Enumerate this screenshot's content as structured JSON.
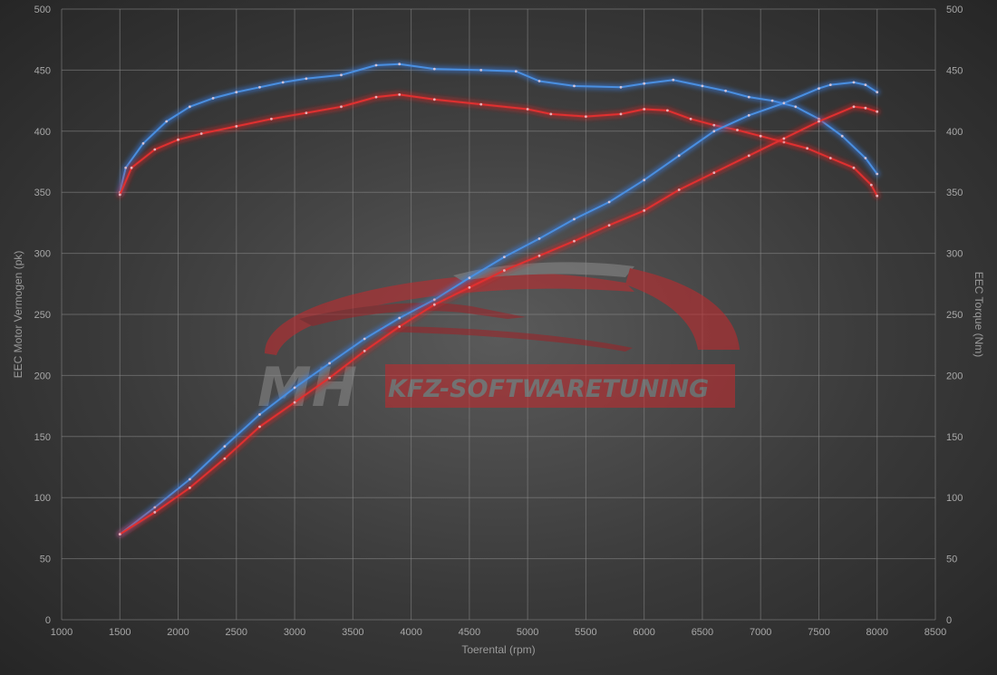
{
  "chart_data": {
    "type": "line",
    "xlabel": "Toerental (rpm)",
    "ylabel_left": "EEC Motor Vermogen (pk)",
    "ylabel_right": "EEC Torque (Nm)",
    "xlim": [
      1000,
      8500
    ],
    "ylim_left": [
      0,
      500
    ],
    "ylim_right": [
      0,
      500
    ],
    "x_ticks": [
      1000,
      1500,
      2000,
      2500,
      3000,
      3500,
      4000,
      4500,
      5000,
      5500,
      6000,
      6500,
      7000,
      7500,
      8000,
      8500
    ],
    "y_ticks": [
      0,
      50,
      100,
      150,
      200,
      250,
      300,
      350,
      400,
      450,
      500
    ],
    "grid": true,
    "series": [
      {
        "color": "#4a8fe0",
        "glow": "#3a7fe8",
        "axis": "right",
        "points": [
          [
            1500,
            350
          ],
          [
            1550,
            370
          ],
          [
            1700,
            390
          ],
          [
            1900,
            408
          ],
          [
            2100,
            420
          ],
          [
            2300,
            427
          ],
          [
            2500,
            432
          ],
          [
            2700,
            436
          ],
          [
            2900,
            440
          ],
          [
            3100,
            443
          ],
          [
            3400,
            446
          ],
          [
            3700,
            454
          ],
          [
            3900,
            455
          ],
          [
            4200,
            451
          ],
          [
            4600,
            450
          ],
          [
            4900,
            449
          ],
          [
            5100,
            441
          ],
          [
            5400,
            437
          ],
          [
            5800,
            436
          ],
          [
            6000,
            439
          ],
          [
            6250,
            442
          ],
          [
            6500,
            437
          ],
          [
            6700,
            433
          ],
          [
            6900,
            428
          ],
          [
            7100,
            425
          ],
          [
            7300,
            420
          ],
          [
            7500,
            410
          ],
          [
            7700,
            396
          ],
          [
            7900,
            378
          ],
          [
            8000,
            365
          ]
        ]
      },
      {
        "color": "#e03030",
        "glow": "#e02020",
        "axis": "right",
        "points": [
          [
            1500,
            348
          ],
          [
            1600,
            370
          ],
          [
            1800,
            385
          ],
          [
            2000,
            393
          ],
          [
            2200,
            398
          ],
          [
            2500,
            404
          ],
          [
            2800,
            410
          ],
          [
            3100,
            415
          ],
          [
            3400,
            420
          ],
          [
            3700,
            428
          ],
          [
            3900,
            430
          ],
          [
            4200,
            426
          ],
          [
            4600,
            422
          ],
          [
            5000,
            418
          ],
          [
            5200,
            414
          ],
          [
            5500,
            412
          ],
          [
            5800,
            414
          ],
          [
            6000,
            418
          ],
          [
            6200,
            417
          ],
          [
            6400,
            410
          ],
          [
            6600,
            405
          ],
          [
            6800,
            401
          ],
          [
            7000,
            396
          ],
          [
            7200,
            391
          ],
          [
            7400,
            386
          ],
          [
            7600,
            378
          ],
          [
            7800,
            370
          ],
          [
            7950,
            356
          ],
          [
            8000,
            347
          ]
        ]
      },
      {
        "color": "#4a8fe0",
        "glow": "#3a7fe8",
        "axis": "left",
        "points": [
          [
            1500,
            70
          ],
          [
            1800,
            92
          ],
          [
            2100,
            115
          ],
          [
            2400,
            142
          ],
          [
            2700,
            168
          ],
          [
            3000,
            190
          ],
          [
            3300,
            210
          ],
          [
            3600,
            230
          ],
          [
            3900,
            247
          ],
          [
            4200,
            262
          ],
          [
            4500,
            280
          ],
          [
            4800,
            297
          ],
          [
            5100,
            312
          ],
          [
            5400,
            328
          ],
          [
            5700,
            342
          ],
          [
            6000,
            360
          ],
          [
            6300,
            380
          ],
          [
            6600,
            400
          ],
          [
            6900,
            413
          ],
          [
            7200,
            423
          ],
          [
            7500,
            435
          ],
          [
            7600,
            438
          ],
          [
            7800,
            440
          ],
          [
            7900,
            438
          ],
          [
            8000,
            432
          ]
        ]
      },
      {
        "color": "#e03030",
        "glow": "#e02020",
        "axis": "left",
        "points": [
          [
            1500,
            70
          ],
          [
            1800,
            88
          ],
          [
            2100,
            108
          ],
          [
            2400,
            132
          ],
          [
            2700,
            158
          ],
          [
            3000,
            178
          ],
          [
            3300,
            198
          ],
          [
            3600,
            220
          ],
          [
            3900,
            240
          ],
          [
            4200,
            258
          ],
          [
            4500,
            272
          ],
          [
            4800,
            286
          ],
          [
            5100,
            298
          ],
          [
            5400,
            310
          ],
          [
            5700,
            323
          ],
          [
            6000,
            335
          ],
          [
            6300,
            352
          ],
          [
            6600,
            366
          ],
          [
            6900,
            380
          ],
          [
            7200,
            394
          ],
          [
            7500,
            408
          ],
          [
            7800,
            420
          ],
          [
            7900,
            419
          ],
          [
            8000,
            416
          ]
        ]
      }
    ]
  },
  "watermark": {
    "brand": "MH",
    "text": "KFZ-SOFTWARETUNING",
    "primary_color": "#c8282c",
    "secondary_color": "#8c8c8c"
  }
}
